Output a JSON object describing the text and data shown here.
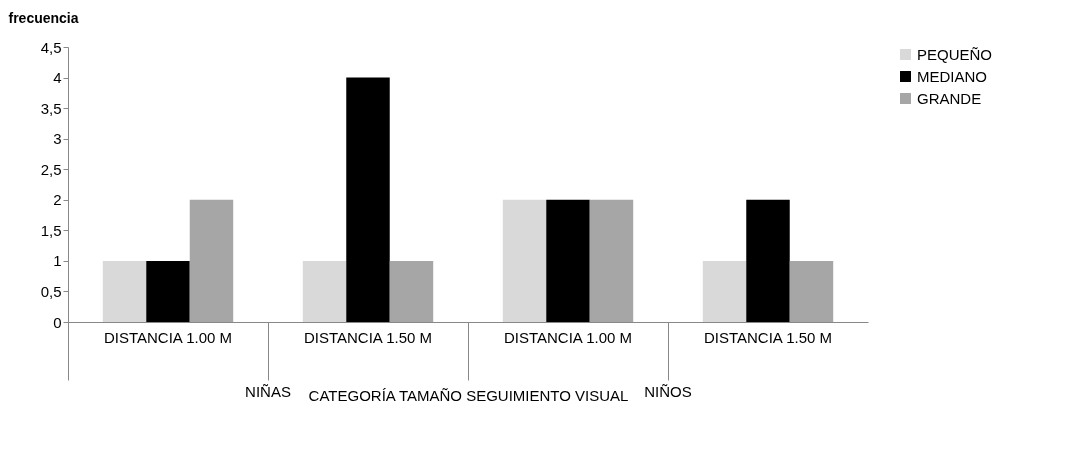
{
  "chart_data": {
    "type": "bar",
    "ylabel": "frecuencia",
    "xlabel": "CATEGORÍA TAMAÑO SEGUIMIENTO VISUAL",
    "categories": [
      "DISTANCIA 1.00 M",
      "DISTANCIA 1.50 M",
      "DISTANCIA 1.00 M",
      "DISTANCIA 1.50 M"
    ],
    "annotations": [
      "NIÑAS",
      "NIÑOS"
    ],
    "series": [
      {
        "name": "PEQUEÑO",
        "color": "#d9d9d9",
        "values": [
          1,
          1,
          2,
          1
        ]
      },
      {
        "name": "MEDIANO",
        "color": "#000000",
        "values": [
          1,
          4,
          2,
          2
        ]
      },
      {
        "name": "GRANDE",
        "color": "#a6a6a6",
        "values": [
          2,
          1,
          2,
          1
        ]
      }
    ],
    "ylim": [
      0,
      4.5
    ],
    "yticks": [
      0,
      {
        "value": 0.5,
        "label": "0,5"
      },
      1,
      {
        "value": 1.5,
        "label": "1,5"
      },
      2,
      {
        "value": 2.5,
        "label": "2,5"
      },
      3,
      {
        "value": 3.5,
        "label": "3,5"
      },
      4,
      {
        "value": 4.5,
        "label": "4,5"
      }
    ],
    "grid": false,
    "legend": "right"
  }
}
